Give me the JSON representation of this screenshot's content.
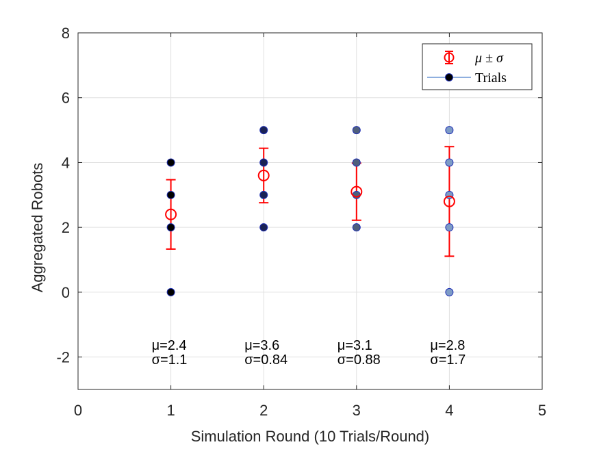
{
  "chart_data": {
    "type": "scatter",
    "xlabel": "Simulation Round (10 Trials/Round)",
    "ylabel": "Aggregated Robots",
    "xlim": [
      0,
      5
    ],
    "ylim": [
      -3,
      8
    ],
    "xticks": [
      0,
      1,
      2,
      3,
      4,
      5
    ],
    "yticks": [
      -2,
      0,
      2,
      4,
      6,
      8
    ],
    "grid": true,
    "legend_position": "top-right",
    "legend": {
      "errorbar_label": "μ ± σ",
      "trials_label": "Trials"
    },
    "colors": {
      "mean": "#ff0000",
      "marker_edge": "#1f2fb4",
      "grid": "#e0e0e0",
      "axis": "#262626",
      "trials_line": "#1f5fbf"
    },
    "rounds": [
      {
        "x": 1,
        "mean": 2.4,
        "std": 1.07,
        "trials": [
          0,
          2,
          3,
          4
        ],
        "fill": "#000000",
        "mu_label": "μ=2.4",
        "sigma_label": "σ=1.1"
      },
      {
        "x": 2,
        "mean": 3.6,
        "std": 0.84,
        "trials": [
          2,
          3,
          4,
          5
        ],
        "fill": "#1a2255",
        "mu_label": "μ=3.6",
        "sigma_label": "σ=0.84"
      },
      {
        "x": 3,
        "mean": 3.1,
        "std": 0.88,
        "trials": [
          2,
          3,
          4,
          5
        ],
        "fill": "#4f5f7c",
        "mu_label": "μ=3.1",
        "sigma_label": "σ=0.88"
      },
      {
        "x": 4,
        "mean": 2.8,
        "std": 1.69,
        "trials": [
          0,
          2,
          3,
          4,
          5
        ],
        "fill": "#7d9bc6",
        "mu_label": "μ=2.8",
        "sigma_label": "σ=1.7"
      }
    ]
  }
}
